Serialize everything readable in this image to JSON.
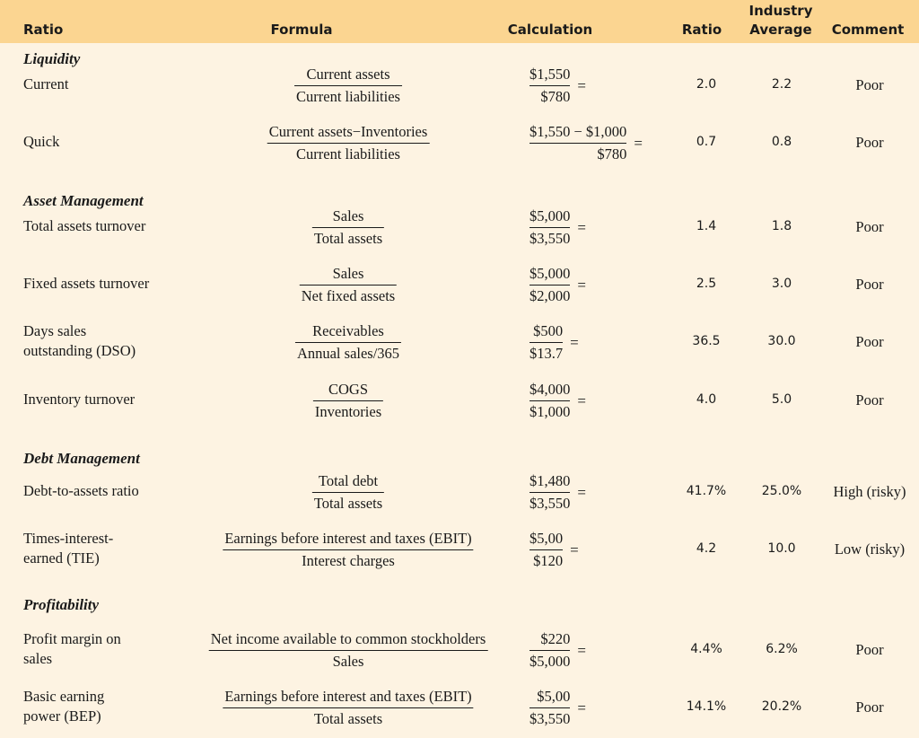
{
  "headers": {
    "ratio": "Ratio",
    "formula": "Formula",
    "calculation": "Calculation",
    "ratio_value": "Ratio",
    "industry_line1": "Industry",
    "industry_line2": "Average",
    "comment": "Comment"
  },
  "sections": {
    "liquidity": "Liquidity",
    "asset_management": "Asset Management",
    "debt_management": "Debt Management",
    "profitability": "Profitability"
  },
  "rows": [
    {
      "name1": "Current",
      "name2": "",
      "formula_num": "Current assets",
      "formula_den": "Current liabilities",
      "calc_num": "$1,550",
      "calc_den": "$780",
      "ratio": "2.0",
      "industry": "2.2",
      "comment": "Poor"
    },
    {
      "name1": "Quick",
      "name2": "",
      "formula_num": "Current assets−Inventories",
      "formula_den": "Current liabilities",
      "calc_num": "$1,550 − $1,000",
      "calc_den": "$780",
      "ratio": "0.7",
      "industry": "0.8",
      "comment": "Poor"
    },
    {
      "name1": "Total assets turnover",
      "name2": "",
      "formula_num": "Sales",
      "formula_den": "Total assets",
      "calc_num": "$5,000",
      "calc_den": "$3,550",
      "ratio": "1.4",
      "industry": "1.8",
      "comment": "Poor"
    },
    {
      "name1": "Fixed assets turnover",
      "name2": "",
      "formula_num": "Sales",
      "formula_den": "Net fixed assets",
      "calc_num": "$5,000",
      "calc_den": "$2,000",
      "ratio": "2.5",
      "industry": "3.0",
      "comment": "Poor"
    },
    {
      "name1": "Days sales",
      "name2": "outstanding (DSO)",
      "formula_num": "Receivables",
      "formula_den": "Annual sales/365",
      "calc_num": "$500",
      "calc_den": "$13.7",
      "ratio": "36.5",
      "industry": "30.0",
      "comment": "Poor"
    },
    {
      "name1": "Inventory turnover",
      "name2": "",
      "formula_num": "COGS",
      "formula_den": "Inventories",
      "calc_num": "$4,000",
      "calc_den": "$1,000",
      "ratio": "4.0",
      "industry": "5.0",
      "comment": "Poor"
    },
    {
      "name1": "Debt-to-assets ratio",
      "name2": "",
      "formula_num": "Total debt",
      "formula_den": "Total assets",
      "calc_num": "$1,480",
      "calc_den": "$3,550",
      "ratio": "41.7%",
      "industry": "25.0%",
      "comment": "High (risky)"
    },
    {
      "name1": "Times-interest-",
      "name2": "earned (TIE)",
      "formula_num": "Earnings before interest and taxes (EBIT)",
      "formula_den": "Interest charges",
      "calc_num": "$5,00",
      "calc_den": "$120",
      "ratio": "4.2",
      "industry": "10.0",
      "comment": "Low (risky)"
    },
    {
      "name1": "Profit margin on",
      "name2": "sales",
      "formula_num": "Net income available to common stockholders",
      "formula_den": "Sales",
      "calc_num": "$220",
      "calc_den": "$5,000",
      "ratio": "4.4%",
      "industry": "6.2%",
      "comment": "Poor"
    },
    {
      "name1": "Basic earning",
      "name2": "power (BEP)",
      "formula_num": "Earnings before interest and taxes (EBIT)",
      "formula_den": "Total assets",
      "calc_num": "$5,00",
      "calc_den": "$3,550",
      "ratio": "14.1%",
      "industry": "20.2%",
      "comment": "Poor"
    }
  ],
  "equals_sign": "="
}
